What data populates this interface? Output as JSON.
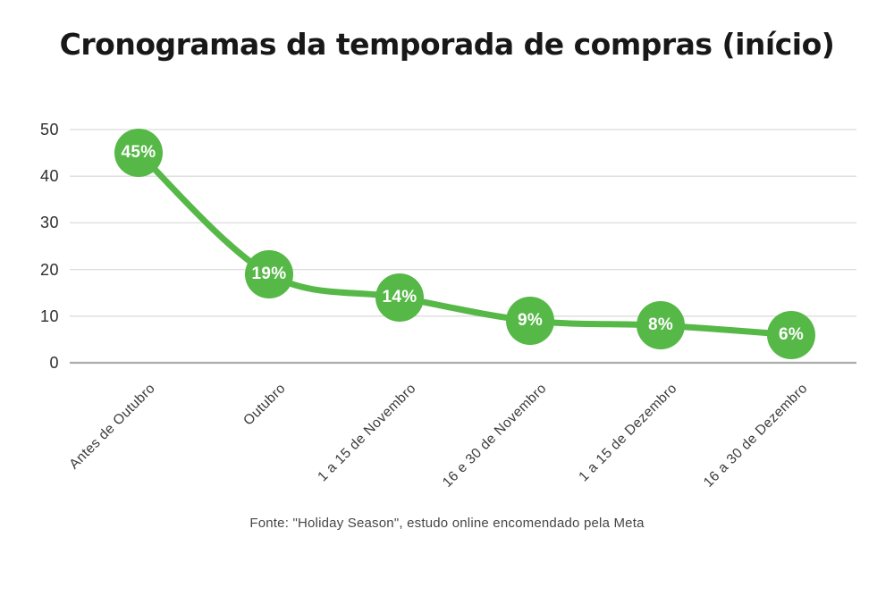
{
  "title": "Cronogramas da temporada de compras (início)",
  "source": "Fonte: \"Holiday Season\", estudo online encomendado pela Meta",
  "colors": {
    "accent_green": "#56B847",
    "gridline": "#dcdcdc",
    "zero_line": "#ababab",
    "title_text": "#181818",
    "axis_text": "#3a3a3a",
    "point_label_text": "#ffffff"
  },
  "chart_data": {
    "type": "line",
    "title": "Cronogramas da temporada de compras (início)",
    "categories": [
      "Antes de Outubro",
      "Outubro",
      "1 a 15 de Novembro",
      "16 e 30 de Novembro",
      "1 a 15 de Dezembro",
      "16 a 30 de Dezembro"
    ],
    "values": [
      45,
      19,
      14,
      9,
      8,
      6
    ],
    "point_labels": [
      "45%",
      "19%",
      "14%",
      "9%",
      "8%",
      "6%"
    ],
    "y_ticks": [
      0,
      10,
      20,
      30,
      40,
      50
    ],
    "ylim": [
      0,
      50
    ],
    "xlabel": "",
    "ylabel": "",
    "grid": "horizontal-only",
    "legend": "none",
    "marker": "filled-circle-with-percentage-label",
    "line_style": "smooth",
    "source_note": "Fonte: \"Holiday Season\", estudo online encomendado pela Meta"
  }
}
